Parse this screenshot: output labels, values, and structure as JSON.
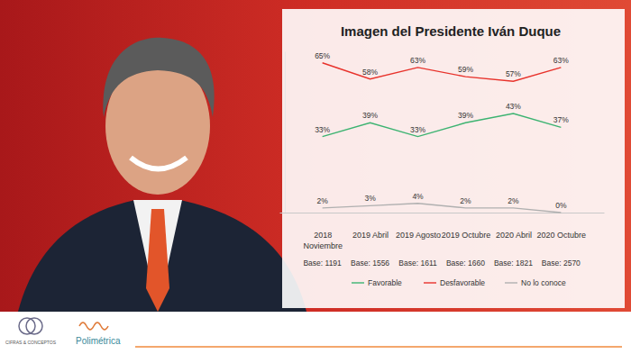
{
  "chart_data": {
    "type": "line",
    "title": "Imagen del Presidente Iván Duque",
    "categories": [
      "2018 Noviembre",
      "2019 Abril",
      "2019 Agosto",
      "2019 Octubre",
      "2020 Abril",
      "2020 Octubre"
    ],
    "base_labels": [
      "Base: 1191",
      "Base: 1556",
      "Base: 1611",
      "Base: 1660",
      "Base: 1821",
      "Base: 2570"
    ],
    "series": [
      {
        "name": "Favorable",
        "color": "#3cb371",
        "values": [
          33,
          39,
          33,
          39,
          43,
          37
        ],
        "value_labels": [
          "33%",
          "39%",
          "33%",
          "39%",
          "43%",
          "37%"
        ]
      },
      {
        "name": "Desfavorable",
        "color": "#e8322b",
        "values": [
          65,
          58,
          63,
          59,
          57,
          63
        ],
        "value_labels": [
          "65%",
          "58%",
          "63%",
          "59%",
          "57%",
          "63%"
        ]
      },
      {
        "name": "No lo conoce",
        "color": "#b0b0b0",
        "values": [
          2,
          3,
          4,
          2,
          2,
          0
        ],
        "value_labels": [
          "2%",
          "3%",
          "4%",
          "2%",
          "2%",
          "0%"
        ]
      }
    ],
    "ylim": [
      0,
      70
    ],
    "yticks": [],
    "tick_labels": "x",
    "data_labels": true,
    "legend": "bottom"
  },
  "footer": {
    "logos": [
      "CIFRAS & CONCEPTOS",
      "Polimétrica"
    ]
  }
}
